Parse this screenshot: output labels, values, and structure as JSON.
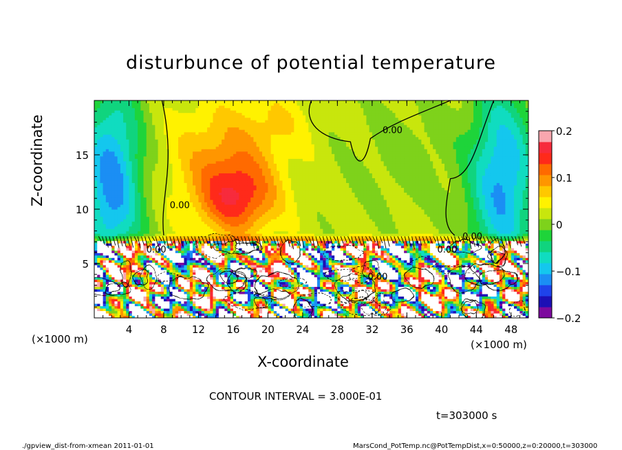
{
  "figure": {
    "title": "disturbunce of potential temperature",
    "xunit_left": "(×1000 m)",
    "xunit_right": "(×1000 m)",
    "contour_interval": "CONTOUR INTERVAL = 3.000E-01",
    "time_label": "t=303000 s",
    "footer_left": "./gpview_dist-from-xmean   2011-01-01",
    "footer_right": "MarsCond_PotTemp.nc@PotTempDist,x=0:50000,z=0:20000,t=303000"
  },
  "chart_data": {
    "type": "heatmap",
    "title": "disturbunce of potential temperature",
    "xlabel": "X-coordinate",
    "ylabel": "Z-coordinate",
    "xlim": [
      0,
      50
    ],
    "ylim": [
      0,
      20
    ],
    "xticks": [
      4,
      8,
      12,
      16,
      20,
      24,
      28,
      32,
      36,
      40,
      44,
      48
    ],
    "yticks": [
      5,
      10,
      15
    ],
    "colorbar": {
      "range": [
        -0.2,
        0.2
      ],
      "ticks": [
        {
          "value": 0.2,
          "label": "0.2"
        },
        {
          "value": 0.1,
          "label": "0.1"
        },
        {
          "value": 0,
          "label": "0"
        },
        {
          "value": -0.1,
          "label": "−0.1"
        },
        {
          "value": -0.2,
          "label": "−0.2"
        }
      ],
      "colors": [
        "#7d0a9e",
        "#1c0fb5",
        "#1f43ea",
        "#1b8ef4",
        "#14c7ee",
        "#10dcc0",
        "#10d47e",
        "#1ed43a",
        "#7ed21b",
        "#c8e60d",
        "#fff200",
        "#ffc800",
        "#ff9600",
        "#ff6a00",
        "#ff2a1a",
        "#f72b3c",
        "#f9a6ae"
      ]
    },
    "contour_interval": 0.3,
    "contour_labels": [
      {
        "x": 8.7,
        "z": 10.1,
        "text": "0.00"
      },
      {
        "x": 33.2,
        "z": 17.0,
        "text": "0.00"
      },
      {
        "x": 42.4,
        "z": 7.2,
        "text": "0.00"
      },
      {
        "x": 39.5,
        "z": 6.0,
        "text": "0.00"
      },
      {
        "x": 6.0,
        "z": 6.0,
        "text": "0.00"
      },
      {
        "x": 31.5,
        "z": 3.5,
        "text": "0.00"
      }
    ],
    "field_components": {
      "upper_background": 0.02,
      "upper_anomalies": [
        {
          "x": 16.5,
          "z": 11.0,
          "sx": 4.5,
          "sz": 3.5,
          "amp": 0.11
        },
        {
          "x": 14.5,
          "z": 15.0,
          "sx": 6.0,
          "sz": 5.0,
          "amp": 0.06
        },
        {
          "x": 21.0,
          "z": 18.0,
          "sx": 4.0,
          "sz": 3.0,
          "amp": 0.03
        },
        {
          "x": 47.0,
          "z": 12.5,
          "sx": 3.8,
          "sz": 9.0,
          "amp": -0.13
        },
        {
          "x": 2.0,
          "z": 12.5,
          "sx": 3.5,
          "sz": 9.0,
          "amp": -0.14
        },
        {
          "x": 36.0,
          "z": 15.0,
          "sx": 6.0,
          "sz": 5.0,
          "amp": -0.02
        }
      ],
      "inversion_height": 7.2
    }
  }
}
